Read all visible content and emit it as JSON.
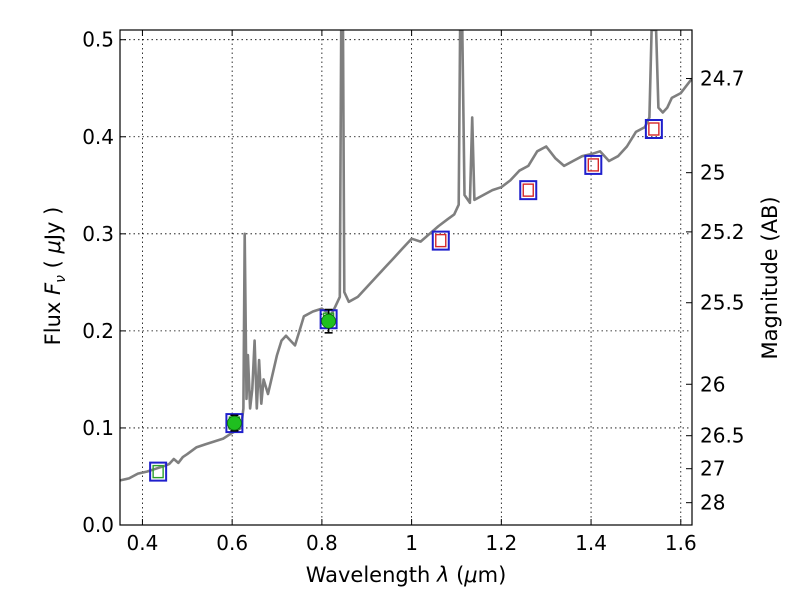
{
  "chart_data": {
    "type": "line",
    "xlabel": "Wavelength  λ (μm)",
    "ylabel": "Flux  F_ν  ( μJy )",
    "ylabel_parts": {
      "pre": "Flux  ",
      "f": "F",
      "nu": "ν",
      "post": "  ( ",
      "mu": "μ",
      "unit": "Jy )"
    },
    "xlabel_parts": {
      "pre": "Wavelength  ",
      "lambda": "λ",
      "post": " (",
      "mu": "μ",
      "unit": "m)"
    },
    "y2label": "Magnitude (AB)",
    "xlim": [
      0.35,
      1.625
    ],
    "ylim": [
      0.0,
      0.51
    ],
    "grid": true,
    "x_ticks": [
      {
        "value": 0.4,
        "label": "0.4"
      },
      {
        "value": 0.6,
        "label": "0.6"
      },
      {
        "value": 0.8,
        "label": "0.8"
      },
      {
        "value": 1.0,
        "label": "1"
      },
      {
        "value": 1.2,
        "label": "1.2"
      },
      {
        "value": 1.4,
        "label": "1.4"
      },
      {
        "value": 1.6,
        "label": "1.6"
      }
    ],
    "y_ticks": [
      {
        "value": 0.0,
        "label": "0.0"
      },
      {
        "value": 0.1,
        "label": "0.1"
      },
      {
        "value": 0.2,
        "label": "0.2"
      },
      {
        "value": 0.3,
        "label": "0.3"
      },
      {
        "value": 0.4,
        "label": "0.4"
      },
      {
        "value": 0.5,
        "label": "0.5"
      }
    ],
    "y2_ticks": [
      {
        "flux": 0.46,
        "label": "24.7"
      },
      {
        "flux": 0.363,
        "label": "25"
      },
      {
        "flux": 0.302,
        "label": "25.2"
      },
      {
        "flux": 0.229,
        "label": "25.5"
      },
      {
        "flux": 0.145,
        "label": "26"
      },
      {
        "flux": 0.092,
        "label": "26.5"
      },
      {
        "flux": 0.058,
        "label": "27"
      },
      {
        "flux": 0.023,
        "label": "28"
      }
    ],
    "model_color": "#7f7f7f",
    "model_spectrum": [
      [
        0.35,
        0.046
      ],
      [
        0.37,
        0.048
      ],
      [
        0.39,
        0.053
      ],
      [
        0.41,
        0.055
      ],
      [
        0.43,
        0.058
      ],
      [
        0.45,
        0.061
      ],
      [
        0.46,
        0.063
      ],
      [
        0.47,
        0.068
      ],
      [
        0.48,
        0.064
      ],
      [
        0.49,
        0.07
      ],
      [
        0.5,
        0.073
      ],
      [
        0.52,
        0.08
      ],
      [
        0.54,
        0.083
      ],
      [
        0.56,
        0.086
      ],
      [
        0.58,
        0.089
      ],
      [
        0.6,
        0.095
      ],
      [
        0.62,
        0.1
      ],
      [
        0.625,
        0.12
      ],
      [
        0.628,
        0.3
      ],
      [
        0.632,
        0.13
      ],
      [
        0.635,
        0.175
      ],
      [
        0.64,
        0.12
      ],
      [
        0.645,
        0.14
      ],
      [
        0.65,
        0.19
      ],
      [
        0.655,
        0.12
      ],
      [
        0.66,
        0.17
      ],
      [
        0.665,
        0.125
      ],
      [
        0.67,
        0.15
      ],
      [
        0.68,
        0.135
      ],
      [
        0.69,
        0.155
      ],
      [
        0.7,
        0.175
      ],
      [
        0.71,
        0.19
      ],
      [
        0.72,
        0.195
      ],
      [
        0.73,
        0.19
      ],
      [
        0.74,
        0.185
      ],
      [
        0.75,
        0.2
      ],
      [
        0.76,
        0.215
      ],
      [
        0.78,
        0.22
      ],
      [
        0.8,
        0.223
      ],
      [
        0.82,
        0.216
      ],
      [
        0.83,
        0.225
      ],
      [
        0.84,
        0.235
      ],
      [
        0.843,
        0.51
      ],
      [
        0.847,
        0.51
      ],
      [
        0.85,
        0.24
      ],
      [
        0.86,
        0.23
      ],
      [
        0.88,
        0.235
      ],
      [
        0.9,
        0.245
      ],
      [
        0.92,
        0.255
      ],
      [
        0.94,
        0.265
      ],
      [
        0.96,
        0.275
      ],
      [
        0.98,
        0.285
      ],
      [
        1.0,
        0.295
      ],
      [
        1.02,
        0.292
      ],
      [
        1.04,
        0.3
      ],
      [
        1.06,
        0.308
      ],
      [
        1.08,
        0.315
      ],
      [
        1.095,
        0.32
      ],
      [
        1.105,
        0.33
      ],
      [
        1.108,
        0.51
      ],
      [
        1.113,
        0.51
      ],
      [
        1.118,
        0.34
      ],
      [
        1.13,
        0.332
      ],
      [
        1.135,
        0.42
      ],
      [
        1.14,
        0.335
      ],
      [
        1.16,
        0.34
      ],
      [
        1.18,
        0.345
      ],
      [
        1.2,
        0.348
      ],
      [
        1.22,
        0.355
      ],
      [
        1.24,
        0.365
      ],
      [
        1.26,
        0.37
      ],
      [
        1.28,
        0.385
      ],
      [
        1.3,
        0.39
      ],
      [
        1.32,
        0.378
      ],
      [
        1.34,
        0.37
      ],
      [
        1.36,
        0.375
      ],
      [
        1.38,
        0.38
      ],
      [
        1.4,
        0.382
      ],
      [
        1.42,
        0.385
      ],
      [
        1.44,
        0.375
      ],
      [
        1.46,
        0.38
      ],
      [
        1.48,
        0.39
      ],
      [
        1.5,
        0.405
      ],
      [
        1.52,
        0.41
      ],
      [
        1.53,
        0.42
      ],
      [
        1.535,
        0.51
      ],
      [
        1.545,
        0.51
      ],
      [
        1.55,
        0.43
      ],
      [
        1.56,
        0.425
      ],
      [
        1.57,
        0.43
      ],
      [
        1.58,
        0.44
      ],
      [
        1.6,
        0.445
      ],
      [
        1.625,
        0.46
      ]
    ],
    "photometry_boxes": [
      {
        "x": 0.435,
        "y": 0.055,
        "outer": "#1f1fcc",
        "inner": "#2ca02c"
      },
      {
        "x": 0.605,
        "y": 0.105,
        "outer": "#1f1fcc",
        "inner": "#2ca02c"
      },
      {
        "x": 0.815,
        "y": 0.212,
        "outer": "#1f1fcc",
        "inner": "#2ca02c"
      },
      {
        "x": 1.065,
        "y": 0.293,
        "outer": "#1f1fcc",
        "inner": "#d62728"
      },
      {
        "x": 1.26,
        "y": 0.345,
        "outer": "#1f1fcc",
        "inner": "#d62728"
      },
      {
        "x": 1.405,
        "y": 0.371,
        "outer": "#1f1fcc",
        "inner": "#d62728"
      },
      {
        "x": 1.54,
        "y": 0.408,
        "outer": "#1f1fcc",
        "inner": "#d62728"
      }
    ],
    "measured_points": [
      {
        "x": 0.605,
        "y": 0.105,
        "err": 0.008,
        "color": "#1fbf1f"
      },
      {
        "x": 0.815,
        "y": 0.21,
        "err": 0.012,
        "color": "#1fbf1f"
      }
    ]
  }
}
